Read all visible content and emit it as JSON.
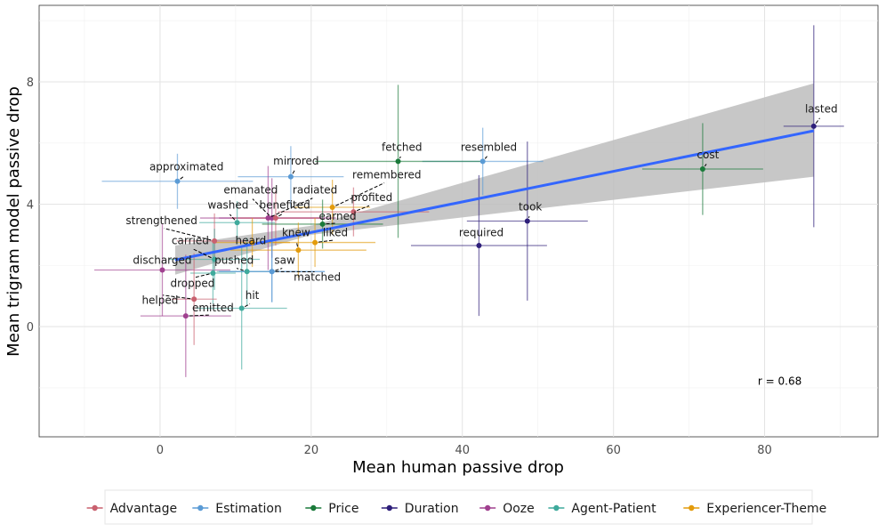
{
  "chart_data": {
    "type": "scatter",
    "xlabel": "Mean human passive drop",
    "ylabel": "Mean trigram model passive drop",
    "xlim": [
      -16,
      95
    ],
    "ylim": [
      -3.6,
      10.5
    ],
    "xticks": [
      0,
      20,
      40,
      60,
      80
    ],
    "yticks": [
      0,
      4,
      8
    ],
    "annotation": "r =  0.68",
    "annotation_pos": [
      82,
      -1.9
    ],
    "regression": {
      "x1": 2,
      "y1": 2.18,
      "x2": 86.5,
      "y2": 6.4,
      "band_left_lo": 1.7,
      "band_left_hi": 2.65,
      "band_mid_lo": 3.0,
      "band_mid_hi": 3.3,
      "band_right_lo": 4.9,
      "band_right_hi": 7.95,
      "mid_x": 20
    },
    "grid": true,
    "legend_position": "bottom",
    "categories": [
      {
        "name": "Advantage",
        "color": "#c9616f"
      },
      {
        "name": "Estimation",
        "color": "#5b9bd5"
      },
      {
        "name": "Price",
        "color": "#1a7a3a"
      },
      {
        "name": "Duration",
        "color": "#2e1f7a"
      },
      {
        "name": "Ooze",
        "color": "#a0408f"
      },
      {
        "name": "Agent-Patient",
        "color": "#3faa9c"
      },
      {
        "name": "Experiencer-Theme",
        "color": "#e39b0c"
      }
    ],
    "points": [
      {
        "word": "lasted",
        "cat": "Duration",
        "x": 86.5,
        "y": 6.55,
        "xe": 4,
        "ye": 3.3,
        "lx": 87.5,
        "ly": 7.0
      },
      {
        "word": "cost",
        "cat": "Price",
        "x": 71.8,
        "y": 5.15,
        "xe": 8,
        "ye": 1.5,
        "lx": 72.5,
        "ly": 5.5
      },
      {
        "word": "resembled",
        "cat": "Estimation",
        "x": 42.7,
        "y": 5.4,
        "xe": 8,
        "ye": 1.1,
        "lx": 43.5,
        "ly": 5.75
      },
      {
        "word": "fetched",
        "cat": "Price",
        "x": 31.5,
        "y": 5.4,
        "xe": 11,
        "ye": 2.5,
        "lx": 32,
        "ly": 5.75
      },
      {
        "word": "mirrored",
        "cat": "Estimation",
        "x": 17.3,
        "y": 4.9,
        "xe": 7,
        "ye": 1.0,
        "lx": 18,
        "ly": 5.3
      },
      {
        "word": "approximated",
        "cat": "Estimation",
        "x": 2.3,
        "y": 4.75,
        "xe": 10,
        "ye": 0.9,
        "lx": 3.5,
        "ly": 5.1
      },
      {
        "word": "remembered",
        "cat": "Experiencer-Theme",
        "x": 22.8,
        "y": 3.9,
        "xe": 5,
        "ye": 0.9,
        "lx": 30,
        "ly": 4.85
      },
      {
        "word": "radiated",
        "cat": "Ooze",
        "x": 14.3,
        "y": 3.55,
        "xe": 9,
        "ye": 1.7,
        "lx": 20.5,
        "ly": 4.35
      },
      {
        "word": "emanated",
        "cat": "Ooze",
        "x": 14.8,
        "y": 3.55,
        "xe": 7,
        "ye": 1.3,
        "lx": 12,
        "ly": 4.35
      },
      {
        "word": "profited",
        "cat": "Advantage",
        "x": 25.6,
        "y": 3.75,
        "xe": 10,
        "ye": 0.8,
        "lx": 28,
        "ly": 4.1
      },
      {
        "word": "benefited",
        "cat": "Advantage",
        "x": 15.3,
        "y": 3.55,
        "xe": 6,
        "ye": 0.9,
        "lx": 16.5,
        "ly": 3.85
      },
      {
        "word": "washed",
        "cat": "Agent-Patient",
        "x": 10.2,
        "y": 3.4,
        "xe": 5,
        "ye": 0.7,
        "lx": 9,
        "ly": 3.85
      },
      {
        "word": "earned",
        "cat": "Price",
        "x": 21.5,
        "y": 3.35,
        "xe": 8,
        "ye": 0.8,
        "lx": 23.5,
        "ly": 3.5
      },
      {
        "word": "took",
        "cat": "Duration",
        "x": 48.6,
        "y": 3.45,
        "xe": 8,
        "ye": 2.6,
        "lx": 49,
        "ly": 3.8
      },
      {
        "word": "strengthened",
        "cat": "Advantage",
        "x": 7.2,
        "y": 2.8,
        "xe": 5,
        "ye": 0.9,
        "lx": 0.2,
        "ly": 3.35
      },
      {
        "word": "liked",
        "cat": "Experiencer-Theme",
        "x": 20.5,
        "y": 2.75,
        "xe": 8,
        "ye": 0.8,
        "lx": 23.2,
        "ly": 2.95
      },
      {
        "word": "knew",
        "cat": "Experiencer-Theme",
        "x": 18.3,
        "y": 2.5,
        "xe": 9,
        "ye": 0.9,
        "lx": 18,
        "ly": 2.95
      },
      {
        "word": "heard",
        "cat": "Experiencer-Theme",
        "x": 12.2,
        "y": 2.75,
        "xe": 5,
        "ye": 0.8,
        "lx": 12,
        "ly": 2.7
      },
      {
        "word": "required",
        "cat": "Duration",
        "x": 42.2,
        "y": 2.65,
        "xe": 9,
        "ye": 2.3,
        "lx": 42.5,
        "ly": 2.95
      },
      {
        "word": "carried",
        "cat": "Agent-Patient",
        "x": 7.2,
        "y": 2.2,
        "xe": 6,
        "ye": 1.0,
        "lx": 4,
        "ly": 2.7
      },
      {
        "word": "discharged",
        "cat": "Ooze",
        "x": 0.3,
        "y": 1.85,
        "xe": 9,
        "ye": 1.5,
        "lx": 0.3,
        "ly": 2.05
      },
      {
        "word": "pushed",
        "cat": "Agent-Patient",
        "x": 11.5,
        "y": 1.8,
        "xe": 4,
        "ye": 1.1,
        "lx": 9.8,
        "ly": 2.05
      },
      {
        "word": "saw",
        "cat": "Estimation",
        "x": 14.8,
        "y": 1.8,
        "xe": 7,
        "ye": 1.0,
        "lx": 16.5,
        "ly": 2.05
      },
      {
        "word": "matched",
        "cat": "Estimation",
        "x": 14.8,
        "y": 1.8,
        "xe": 7,
        "ye": 1.0,
        "lx": 20.8,
        "ly": 1.5
      },
      {
        "word": "dropped",
        "cat": "Agent-Patient",
        "x": 7.0,
        "y": 1.75,
        "xe": 3,
        "ye": 1.0,
        "lx": 4.3,
        "ly": 1.3
      },
      {
        "word": "hit",
        "cat": "Agent-Patient",
        "x": 10.8,
        "y": 0.6,
        "xe": 6,
        "ye": 2.0,
        "lx": 12.2,
        "ly": 0.9
      },
      {
        "word": "helped",
        "cat": "Advantage",
        "x": 4.5,
        "y": 0.9,
        "xe": 3,
        "ye": 1.5,
        "lx": 0,
        "ly": 0.75
      },
      {
        "word": "emitted",
        "cat": "Ooze",
        "x": 3.4,
        "y": 0.35,
        "xe": 6,
        "ye": 2.0,
        "lx": 7,
        "ly": 0.5
      }
    ]
  }
}
